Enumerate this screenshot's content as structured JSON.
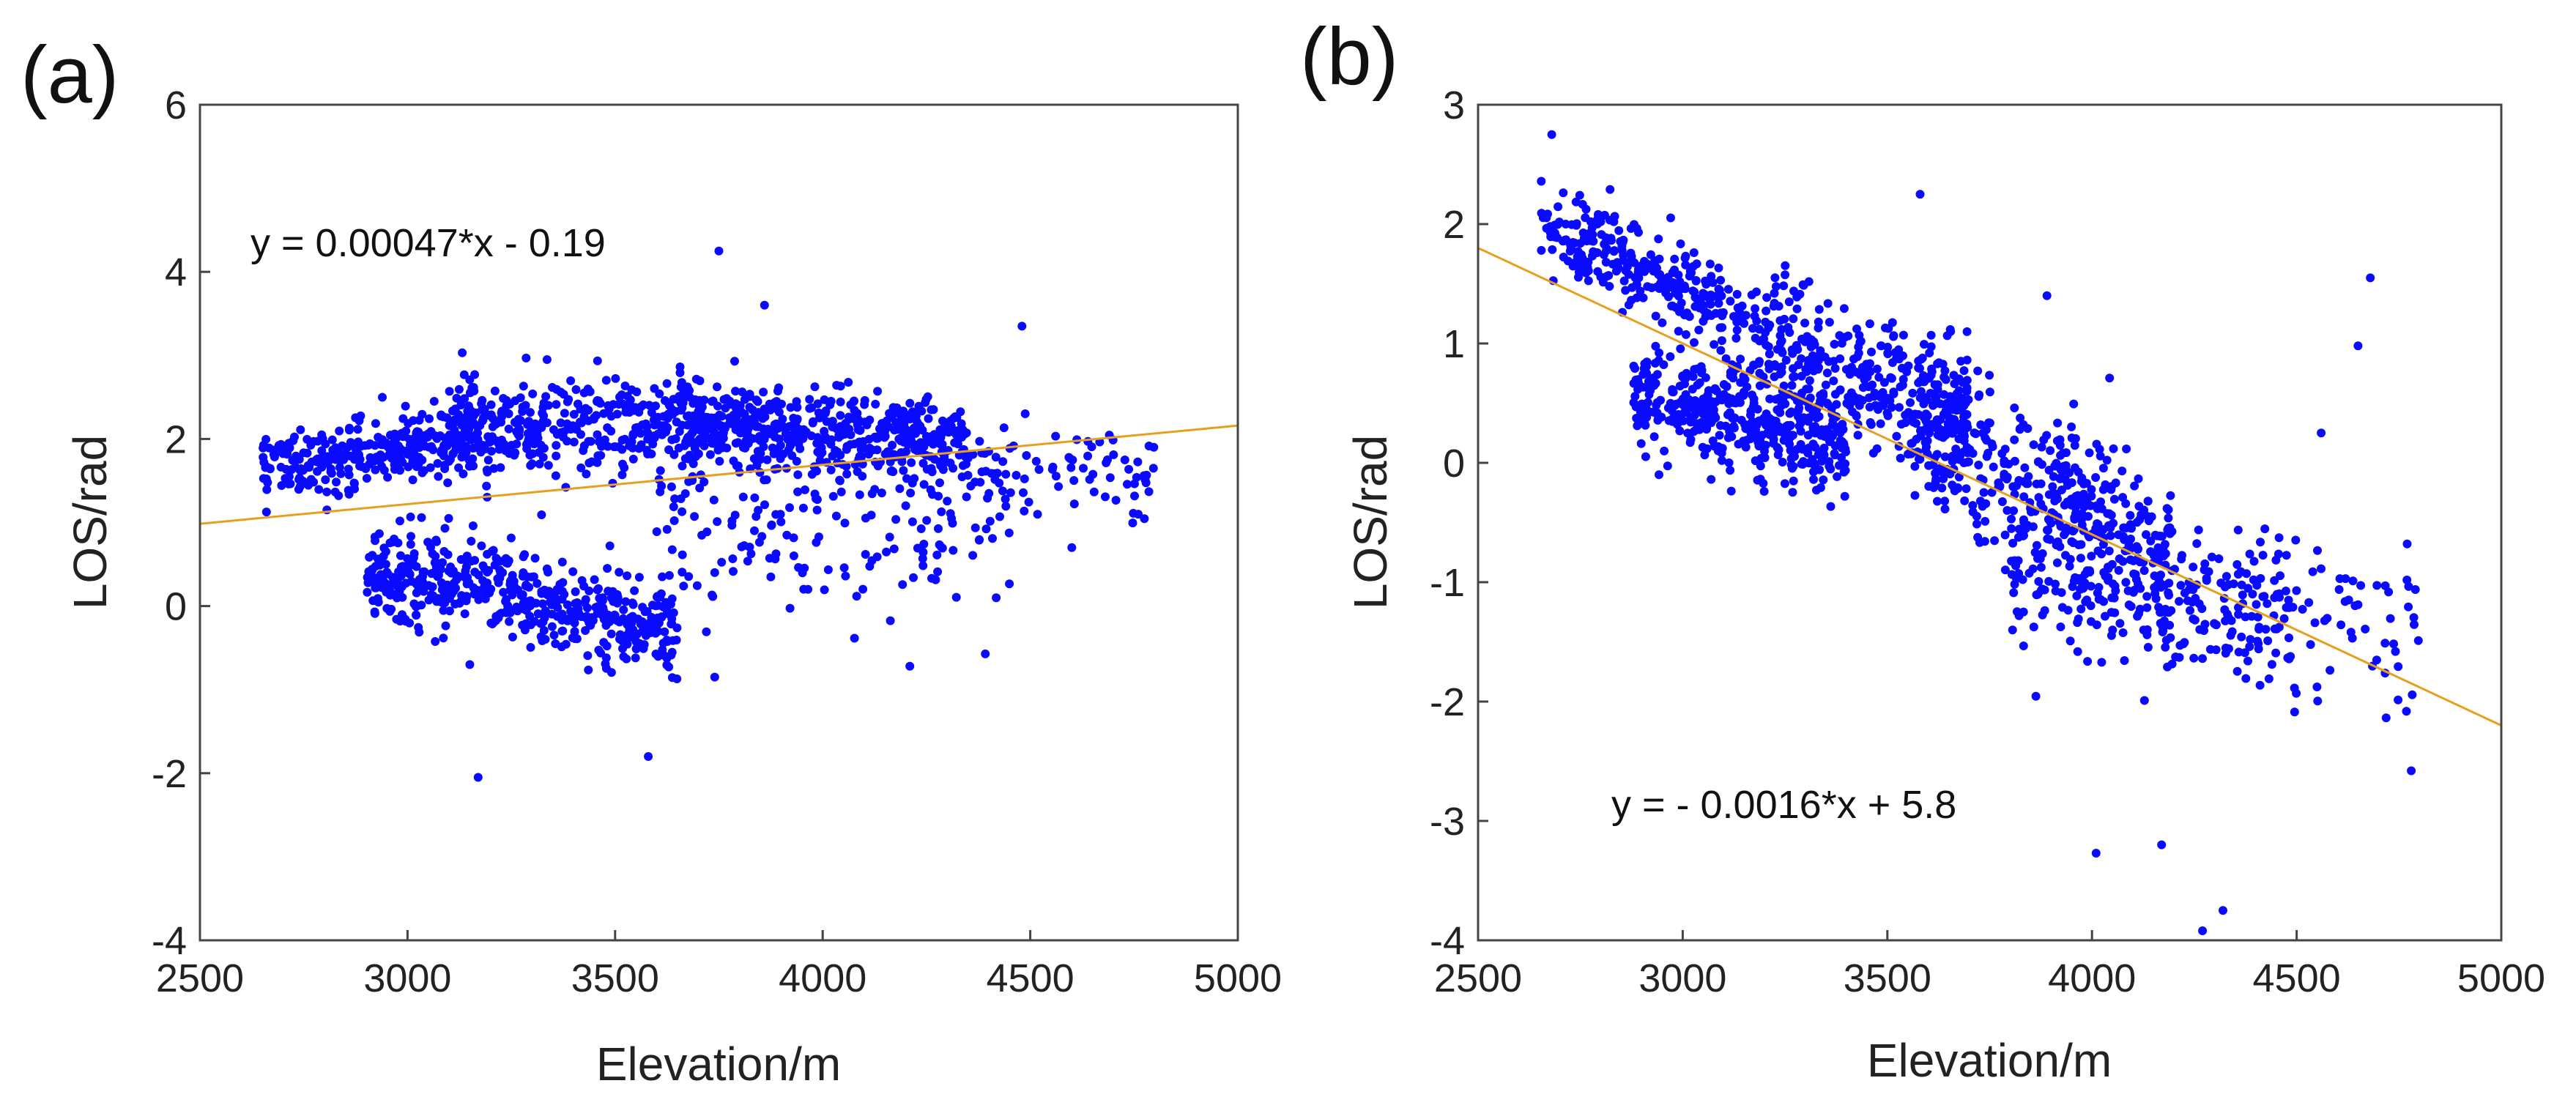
{
  "colors": {
    "points": "#0a0aff",
    "fit": "#e6a020",
    "axes": "#444444",
    "text": "#222222"
  },
  "chart_data": [
    {
      "type": "scatter",
      "panel_label": "(a)",
      "xlabel": "Elevation/m",
      "ylabel": "LOS/rad",
      "xlim": [
        2500,
        5000
      ],
      "ylim": [
        -4,
        6
      ],
      "xticks": [
        "2500",
        "3000",
        "3500",
        "4000",
        "4500",
        "5000"
      ],
      "yticks": [
        "-4",
        "-2",
        "0",
        "2",
        "4",
        "6"
      ],
      "equation": "y = 0.00047*x - 0.19",
      "fit": {
        "slope": 0.00047,
        "intercept": -0.19
      },
      "outliers": [
        [
          3170,
          -2.05
        ],
        [
          3580,
          -1.8
        ],
        [
          3750,
          4.25
        ],
        [
          3860,
          3.6
        ],
        [
          4480,
          3.35
        ],
        [
          4210,
          -0.72
        ],
        [
          3740,
          -0.85
        ],
        [
          3150,
          -0.7
        ],
        [
          4600,
          0.7
        ],
        [
          4760,
          1.1
        ]
      ],
      "clusters": [
        {
          "n": 300,
          "x": [
            2650,
            3150
          ],
          "y_center": [
            1.7,
            2.0
          ],
          "spread": 0.35
        },
        {
          "n": 260,
          "x": [
            2900,
            3250
          ],
          "y_center": [
            0.35,
            0.25
          ],
          "spread": 0.45
        },
        {
          "n": 260,
          "x": [
            3250,
            3650
          ],
          "y_center": [
            0.1,
            -0.3
          ],
          "spread": 0.45
        },
        {
          "n": 380,
          "x": [
            3100,
            3750
          ],
          "y_center": [
            2.1,
            2.2
          ],
          "spread": 0.45
        },
        {
          "n": 460,
          "x": [
            3650,
            4350
          ],
          "y_center": [
            2.2,
            2.0
          ],
          "spread": 0.4
        },
        {
          "n": 200,
          "x": [
            3600,
            4500
          ],
          "y_center": [
            0.9,
            1.2
          ],
          "spread": 0.9
        },
        {
          "n": 70,
          "x": [
            4350,
            4800
          ],
          "y_center": [
            1.7,
            1.6
          ],
          "spread": 0.4
        }
      ]
    },
    {
      "type": "scatter",
      "panel_label": "(b)",
      "xlabel": "Elevation/m",
      "ylabel": "LOS/rad",
      "xlim": [
        2500,
        5000
      ],
      "ylim": [
        -4,
        3
      ],
      "xticks": [
        "2500",
        "3000",
        "3500",
        "4000",
        "4500",
        "5000"
      ],
      "yticks": [
        "-4",
        "-3",
        "-2",
        "-1",
        "0",
        "1",
        "2",
        "3"
      ],
      "equation": "y = - 0.0016*x + 5.8",
      "fit": {
        "slope": -0.0016,
        "intercept": 5.8
      },
      "outliers": [
        [
          2680,
          2.75
        ],
        [
          4270,
          -3.92
        ],
        [
          4320,
          -3.75
        ],
        [
          4010,
          -3.27
        ],
        [
          4170,
          -3.2
        ],
        [
          3580,
          2.25
        ],
        [
          4680,
          1.55
        ],
        [
          4650,
          0.98
        ],
        [
          4770,
          -0.68
        ],
        [
          4780,
          -2.58
        ],
        [
          4560,
          0.25
        ],
        [
          3890,
          1.4
        ]
      ],
      "clusters": [
        {
          "n": 260,
          "x": [
            2650,
            3100
          ],
          "y_center": [
            2.0,
            1.3
          ],
          "spread": 0.3
        },
        {
          "n": 420,
          "x": [
            2880,
            3400
          ],
          "y_center": [
            0.55,
            0.15
          ],
          "spread": 0.35
        },
        {
          "n": 380,
          "x": [
            3100,
            3700
          ],
          "y_center": [
            1.1,
            0.4
          ],
          "spread": 0.45
        },
        {
          "n": 360,
          "x": [
            3550,
            4200
          ],
          "y_center": [
            0.3,
            -0.8
          ],
          "spread": 0.55
        },
        {
          "n": 300,
          "x": [
            3800,
            4500
          ],
          "y_center": [
            -0.8,
            -1.4
          ],
          "spread": 0.6
        },
        {
          "n": 70,
          "x": [
            4300,
            4800
          ],
          "y_center": [
            -1.0,
            -1.6
          ],
          "spread": 0.6
        }
      ]
    }
  ]
}
